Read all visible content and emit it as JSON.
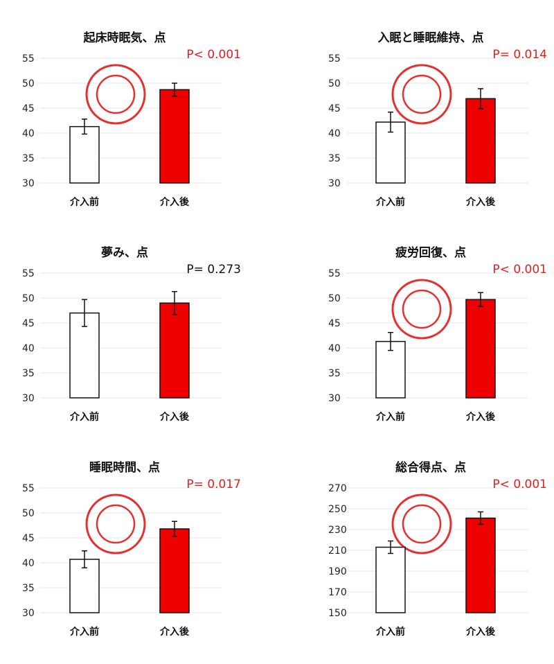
{
  "chart_data": [
    {
      "type": "bar",
      "title": "起床時眠気、点",
      "categories": [
        "介入前",
        "介入後"
      ],
      "values": [
        41.3,
        48.7
      ],
      "errors": [
        1.5,
        1.3
      ],
      "bar_colors": [
        "#ffffff",
        "#ee0000"
      ],
      "ylim": [
        30,
        55
      ],
      "yticks": [
        30,
        35,
        40,
        45,
        50,
        55
      ],
      "p_value": "P< 0.001",
      "p_color": "#e02020",
      "significance_mark": true
    },
    {
      "type": "bar",
      "title": "入眠と睡眠維持、点",
      "categories": [
        "介入前",
        "介入後"
      ],
      "values": [
        42.2,
        46.9
      ],
      "errors": [
        2.0,
        2.0
      ],
      "bar_colors": [
        "#ffffff",
        "#ee0000"
      ],
      "ylim": [
        30,
        55
      ],
      "yticks": [
        30,
        35,
        40,
        45,
        50,
        55
      ],
      "p_value": "P= 0.014",
      "p_color": "#e02020",
      "significance_mark": true
    },
    {
      "type": "bar",
      "title": "夢み、点",
      "categories": [
        "介入前",
        "介入後"
      ],
      "values": [
        47.0,
        49.0
      ],
      "errors": [
        2.7,
        2.3
      ],
      "bar_colors": [
        "#ffffff",
        "#ee0000"
      ],
      "ylim": [
        30,
        55
      ],
      "yticks": [
        30,
        35,
        40,
        45,
        50,
        55
      ],
      "p_value": "P= 0.273",
      "p_color": "#111111",
      "significance_mark": false
    },
    {
      "type": "bar",
      "title": "疲労回復、点",
      "categories": [
        "介入前",
        "介入後"
      ],
      "values": [
        41.3,
        49.7
      ],
      "errors": [
        1.8,
        1.4
      ],
      "bar_colors": [
        "#ffffff",
        "#ee0000"
      ],
      "ylim": [
        30,
        55
      ],
      "yticks": [
        30,
        35,
        40,
        45,
        50,
        55
      ],
      "p_value": "P< 0.001",
      "p_color": "#e02020",
      "significance_mark": true
    },
    {
      "type": "bar",
      "title": "睡眠時間、点",
      "categories": [
        "介入前",
        "介入後"
      ],
      "values": [
        40.7,
        46.8
      ],
      "errors": [
        1.7,
        1.5
      ],
      "bar_colors": [
        "#ffffff",
        "#ee0000"
      ],
      "ylim": [
        30,
        55
      ],
      "yticks": [
        30,
        35,
        40,
        45,
        50,
        55
      ],
      "p_value": "P= 0.017",
      "p_color": "#e02020",
      "significance_mark": true
    },
    {
      "type": "bar",
      "title": "総合得点、点",
      "categories": [
        "介入前",
        "介入後"
      ],
      "values": [
        213,
        241
      ],
      "errors": [
        6,
        6
      ],
      "bar_colors": [
        "#ffffff",
        "#ee0000"
      ],
      "ylim": [
        150,
        270
      ],
      "yticks": [
        150,
        170,
        190,
        210,
        230,
        250,
        270
      ],
      "p_value": "P< 0.001",
      "p_color": "#e02020",
      "significance_mark": true
    }
  ]
}
